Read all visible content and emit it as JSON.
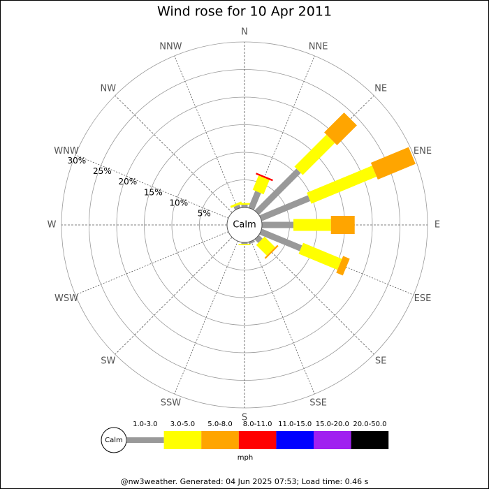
{
  "chart_data": {
    "type": "rose",
    "title": "Wind rose for 10 Apr 2011",
    "calm_label": "Calm",
    "categories": [
      "N",
      "NNE",
      "NE",
      "ENE",
      "E",
      "ESE",
      "SE",
      "SSE",
      "S",
      "SSW",
      "SW",
      "WSW",
      "W",
      "WNW",
      "NW",
      "NNW"
    ],
    "series": [
      {
        "name": "1.0-3.0",
        "color": "#999999",
        "values": [
          0.5,
          3.3,
          10.7,
          9.5,
          5.7,
          7.9,
          0.9,
          0.4,
          0.3,
          0,
          0,
          0,
          0,
          0,
          0,
          0.6
        ]
      },
      {
        "name": "3.0-5.0",
        "color": "#ffff00",
        "values": [
          0.3,
          2.8,
          8.2,
          12.8,
          6.8,
          7.6,
          2.7,
          0,
          0.2,
          0,
          0,
          0,
          0,
          0,
          0,
          0.4
        ]
      },
      {
        "name": "5.0-8.0",
        "color": "#ffa500",
        "values": [
          0,
          0,
          5.1,
          7.4,
          4.3,
          1.3,
          0.3,
          0,
          0,
          0,
          0,
          0,
          0,
          0,
          0,
          0
        ]
      },
      {
        "name": "8.0-11.0",
        "color": "#ff0000",
        "values": [
          0,
          0.3,
          0,
          0,
          0,
          0,
          0,
          0,
          0,
          0,
          0,
          0,
          0,
          0,
          0,
          0
        ]
      },
      {
        "name": "11.0-15.0",
        "color": "#0000ff",
        "values": [
          0,
          0,
          0,
          0,
          0,
          0,
          0,
          0,
          0,
          0,
          0,
          0,
          0,
          0,
          0,
          0
        ]
      },
      {
        "name": "15.0-20.0",
        "color": "#a020f0",
        "values": [
          0,
          0,
          0,
          0,
          0,
          0,
          0,
          0,
          0,
          0,
          0,
          0,
          0,
          0,
          0,
          0
        ]
      },
      {
        "name": "20.0-50.0",
        "color": "#000000",
        "values": [
          0,
          0,
          0,
          0,
          0,
          0,
          0,
          0,
          0,
          0,
          0,
          0,
          0,
          0,
          0,
          0
        ]
      }
    ],
    "rlim": [
      0,
      30
    ],
    "rticks": [
      {
        "value": 5,
        "label": "5%"
      },
      {
        "value": 10,
        "label": "10%"
      },
      {
        "value": 15,
        "label": "15%"
      },
      {
        "value": 20,
        "label": "20%"
      },
      {
        "value": 25,
        "label": "25%"
      },
      {
        "value": 30,
        "label": "30%"
      }
    ],
    "legend_unit": "mph",
    "footer": "@nw3weather. Generated: 04 Jun 2025 07:53; Load time: 0.46 s"
  }
}
